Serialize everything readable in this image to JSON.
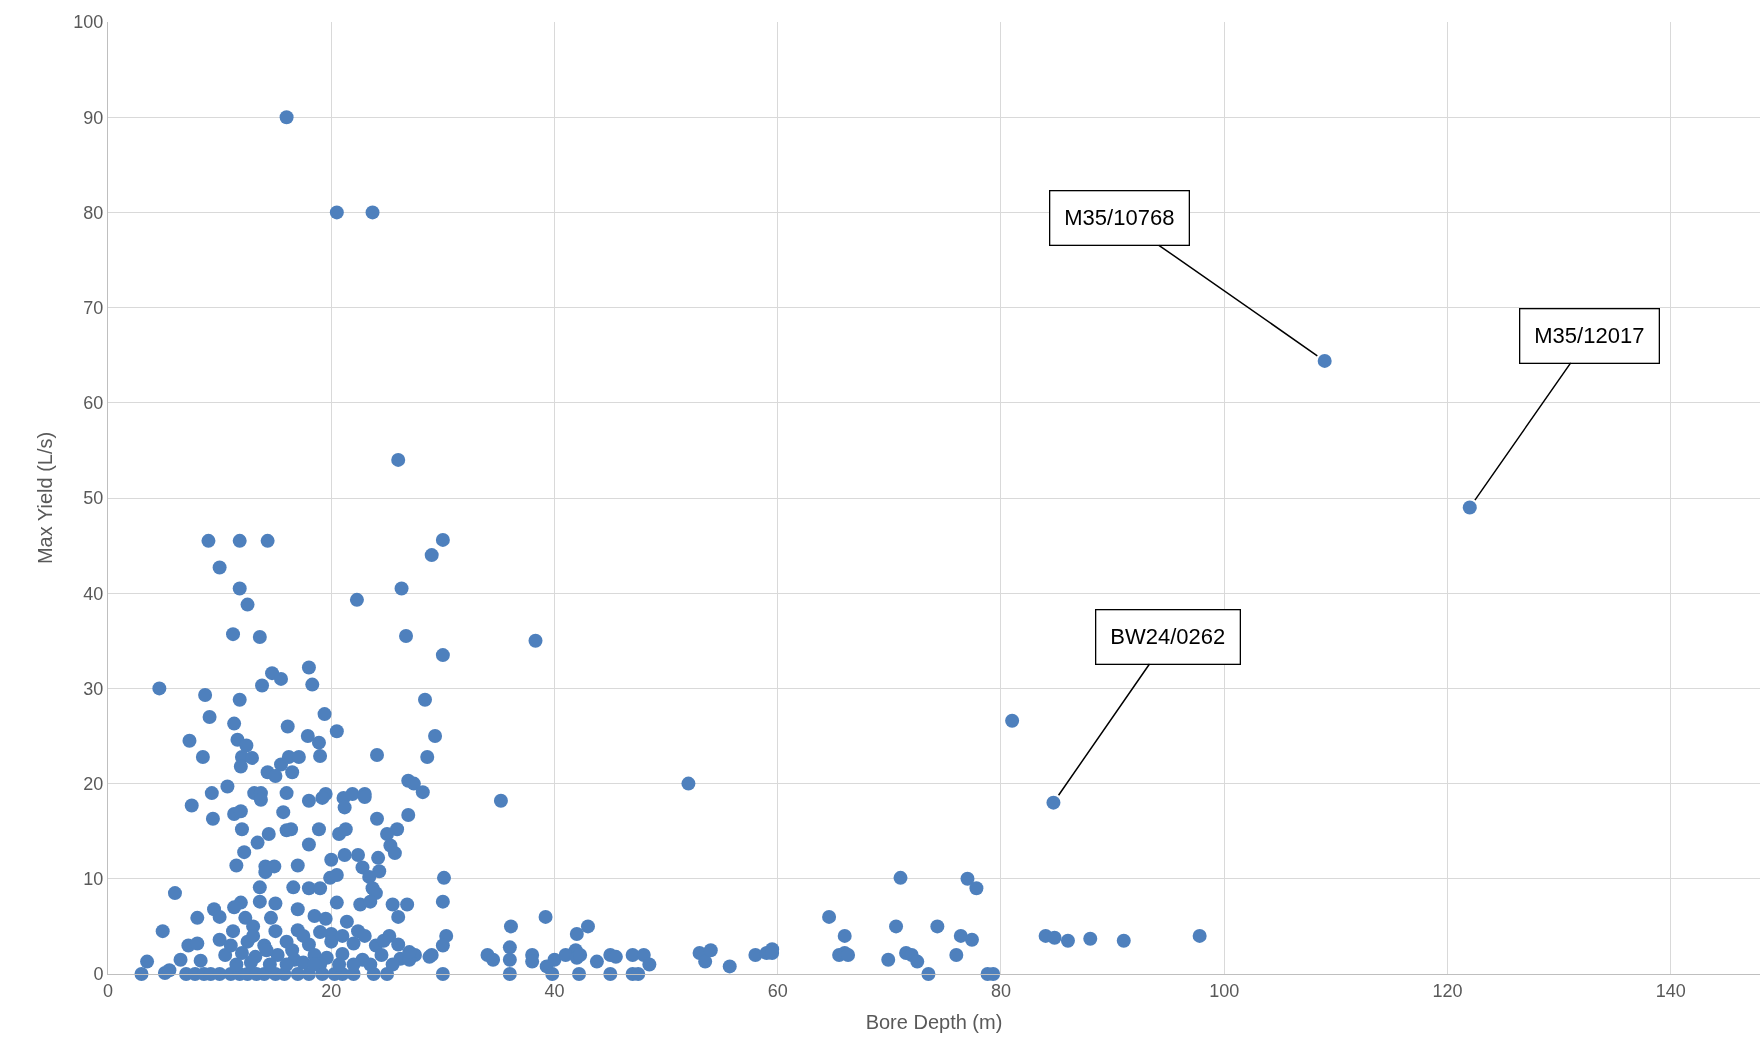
{
  "chart_data": {
    "type": "scatter",
    "xlabel": "Bore Depth (m)",
    "ylabel": "Max Yield (L/s)",
    "xlim": [
      0,
      148
    ],
    "xticks": [
      0,
      20,
      40,
      60,
      80,
      100,
      120,
      140
    ],
    "ylim": [
      0,
      100
    ],
    "yticks": [
      0,
      10,
      20,
      30,
      40,
      50,
      60,
      70,
      80,
      90,
      100
    ],
    "grid": true,
    "marker": "circle",
    "series": [
      {
        "color": "#4e80bd",
        "x": [
          16,
          20.5,
          23.7,
          26,
          4.6,
          9,
          11.8,
          14.3,
          30,
          10,
          11.8,
          12.5,
          22.3,
          26.3,
          29,
          11.2,
          13.6,
          26.7,
          38.3,
          30,
          18,
          14.7,
          15.5,
          13.8,
          18.3,
          8.7,
          11.8,
          28.4,
          9.1,
          19.4,
          11.3,
          16.1,
          20.5,
          29.3,
          7.3,
          11.6,
          12.4,
          17.9,
          18.9,
          8.5,
          12,
          12.9,
          15.5,
          16.2,
          17.1,
          19,
          24.1,
          28.6,
          11.9,
          16.5,
          14.3,
          15,
          26.9,
          27.4,
          28.2,
          52,
          81,
          84.7,
          35.2,
          10.7,
          9.3,
          13.1,
          13.7,
          13.7,
          19.5,
          19.2,
          21.1,
          21.9,
          23,
          23,
          16,
          18,
          7.5,
          11.3,
          11.9,
          15.7,
          21.2,
          24.1,
          26.9,
          9.4,
          12,
          16,
          16.4,
          18.9,
          20.7,
          21.3,
          25.9,
          25,
          14.4,
          13.4,
          18,
          22.4,
          20,
          21.2,
          24.2,
          25.3,
          25.7,
          12.2,
          11.5,
          14.1,
          14.9,
          17,
          22.8,
          24.3,
          30.1,
          71,
          77,
          77.8,
          14.1,
          19.9,
          20.5,
          23.4,
          6,
          13.6,
          16.6,
          18,
          19,
          23.7,
          24,
          25.5,
          26.8,
          30,
          11.9,
          9.5,
          11.3,
          13.6,
          15,
          17,
          20.5,
          22.6,
          23.5,
          8,
          10,
          12.3,
          14.6,
          18.5,
          19.5,
          21.4,
          26,
          39.2,
          64.6,
          4.9,
          11.2,
          13,
          17,
          20,
          22.4,
          25.2,
          30.3,
          36.1,
          42,
          43,
          66,
          70.6,
          74.3,
          76.4,
          77.4,
          84,
          84.8,
          86,
          88,
          91,
          97.8,
          7.2,
          8,
          10,
          12.5,
          14,
          16,
          18,
          20,
          22,
          24,
          26,
          30,
          36,
          41.9,
          3.5,
          6.5,
          8.3,
          10.5,
          12,
          13.2,
          15.2,
          16.7,
          18.5,
          19.6,
          21,
          22.8,
          24.5,
          26.2,
          27.5,
          29,
          34,
          34.5,
          36,
          38,
          38,
          39.3,
          40,
          41,
          42,
          42.3,
          43.8,
          45,
          45.5,
          47,
          48,
          48.5,
          53,
          53.5,
          54,
          55.7,
          58,
          59,
          59.5,
          59.5,
          65.5,
          66,
          66.3,
          69.9,
          71.5,
          72,
          72.5,
          76,
          3,
          5.1,
          5.5,
          7,
          7.8,
          8.6,
          9.2,
          10,
          11,
          11.8,
          12.5,
          13.3,
          14,
          15,
          15.8,
          17,
          18,
          19.2,
          20.3,
          21,
          22,
          23.8,
          25,
          30,
          36,
          39.8,
          42.2,
          45,
          47,
          47.5,
          73.5,
          78.8,
          79.3,
          11.5,
          12.8,
          14.5,
          16,
          17.5,
          19,
          20.7,
          22,
          23.5,
          25.5,
          27,
          28.8,
          11,
          13,
          15,
          17.5,
          19,
          21,
          23,
          24.7,
          27,
          18.5,
          16.5,
          14.2,
          109,
          122
        ],
        "values": [
          90,
          80,
          80,
          54,
          30,
          45.5,
          45.5,
          45.5,
          45.6,
          42.7,
          40.5,
          38.8,
          39.3,
          40.5,
          44,
          35.7,
          35.4,
          35.5,
          35,
          33.5,
          32.2,
          31.6,
          31,
          30.3,
          30.4,
          29.3,
          28.8,
          28.8,
          27,
          27.3,
          26.3,
          26,
          25.5,
          25,
          24.5,
          24.6,
          24,
          25,
          24.3,
          22.8,
          22.8,
          22.7,
          22,
          22.8,
          22.8,
          22.9,
          23,
          22.8,
          21.8,
          21.2,
          21.2,
          20.8,
          20.3,
          20,
          19.1,
          20,
          26.6,
          18,
          18.2,
          19.7,
          19,
          19,
          19,
          18.3,
          18.9,
          18.5,
          18.5,
          18.9,
          18.9,
          18.6,
          19,
          18.2,
          17.7,
          16.8,
          17.1,
          17,
          17.5,
          16.3,
          16.7,
          16.3,
          15.2,
          15.1,
          15.2,
          15.2,
          14.7,
          15.2,
          15.2,
          14.7,
          14.7,
          13.8,
          13.6,
          12.5,
          12,
          12.5,
          12.2,
          13.5,
          12.7,
          12.8,
          11.4,
          11.3,
          11.3,
          11.4,
          11.2,
          10.8,
          10.1,
          10.1,
          10,
          9,
          10.7,
          10.1,
          10.4,
          10.2,
          8.5,
          9.1,
          9.1,
          9,
          9,
          9,
          8.5,
          7.3,
          7.3,
          7.6,
          7.5,
          6.8,
          7,
          7.6,
          7.4,
          6.8,
          7.5,
          7.3,
          7.6,
          5.9,
          6,
          5.9,
          5.9,
          6.1,
          5.8,
          5.5,
          6,
          6,
          6,
          4.5,
          4.5,
          5,
          4.6,
          4.2,
          4.5,
          4,
          4,
          5,
          4.2,
          5,
          4,
          5,
          5,
          4,
          3.6,
          4,
          3.8,
          3.5,
          3.7,
          3.5,
          4,
          3,
          3.2,
          3.6,
          3.4,
          3,
          3.4,
          3.1,
          3.4,
          3.2,
          3,
          3.1,
          3,
          2.8,
          2.5,
          1.3,
          1.5,
          1.4,
          2,
          2.2,
          1.8,
          2,
          1.5,
          2,
          1.7,
          2.1,
          1.5,
          2,
          1.6,
          2,
          2,
          2,
          1.5,
          1.5,
          2,
          1.3,
          0.8,
          1.5,
          2,
          1.7,
          2,
          1.3,
          2,
          1.8,
          2,
          2,
          1,
          2.2,
          1.3,
          2.5,
          0.8,
          2,
          2.2,
          2.6,
          2.2,
          2,
          2.2,
          2,
          1.5,
          2.2,
          2,
          1.3,
          2,
          0,
          0.1,
          0.4,
          0,
          0,
          0,
          0,
          0,
          0,
          0,
          0,
          0,
          0,
          0,
          0,
          0,
          0,
          0,
          0,
          0,
          0,
          0,
          0,
          0,
          0,
          0,
          0,
          0,
          0,
          0,
          0,
          0,
          0,
          1,
          1.2,
          1,
          1,
          1.2,
          1,
          1,
          1,
          1,
          1,
          1.5,
          1.8,
          3,
          4,
          4.5,
          4,
          4.4,
          4,
          4,
          3.5,
          2.3,
          1,
          2.5,
          2.5,
          64.4,
          49
        ]
      }
    ],
    "annotations": [
      {
        "text": "M35/10768",
        "x": 109,
        "y": 64.4
      },
      {
        "text": "M35/12017",
        "x": 122,
        "y": 49
      },
      {
        "text": "BW24/0262",
        "x": 84.7,
        "y": 18
      }
    ]
  }
}
